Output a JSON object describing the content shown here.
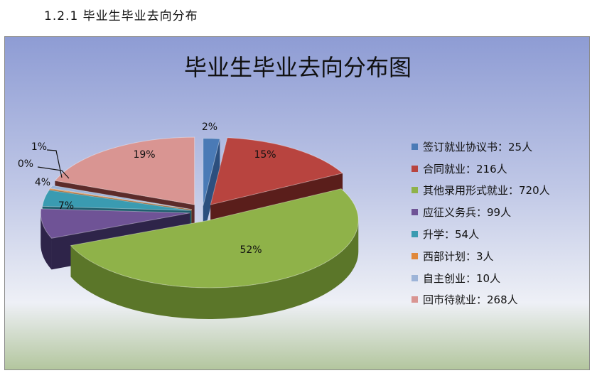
{
  "heading": "1.2.1 毕业生毕业去向分布",
  "chart_data": {
    "type": "pie",
    "title": "毕业生毕业去向分布图",
    "slices": [
      {
        "legend": "签订就业协议书：25人",
        "value": 25,
        "percent_label": "2%",
        "color": "#4a7ab6",
        "side": "#2c4f7e"
      },
      {
        "legend": "合同就业：216人",
        "value": 216,
        "percent_label": "15%",
        "color": "#b8443f",
        "side": "#5a1e1b"
      },
      {
        "legend": "其他录用形式就业：720人",
        "value": 720,
        "percent_label": "52%",
        "color": "#8fb249",
        "side": "#5b7629"
      },
      {
        "legend": "应征义务兵：99人",
        "value": 99,
        "percent_label": "7%",
        "color": "#6f5396",
        "side": "#2e2449"
      },
      {
        "legend": "升学：54人",
        "value": 54,
        "percent_label": "4%",
        "color": "#3a9bb1",
        "side": "#1f5e6e"
      },
      {
        "legend": "西部计划：3人",
        "value": 3,
        "percent_label": "0%",
        "color": "#e0883b",
        "side": "#8a4a14"
      },
      {
        "legend": "自主创业：10人",
        "value": 10,
        "percent_label": "1%",
        "color": "#9db4d8",
        "side": "#5a6e92"
      },
      {
        "legend": "回市待就业：268人",
        "value": 268,
        "percent_label": "19%",
        "color": "#d99592",
        "side": "#5c2b2a"
      }
    ]
  }
}
